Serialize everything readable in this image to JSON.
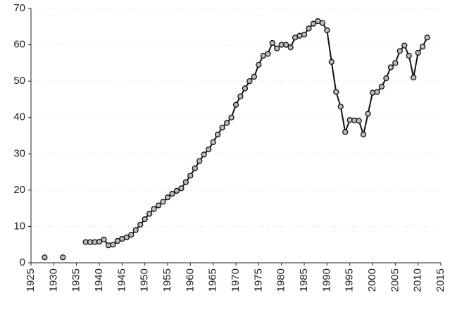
{
  "chart_data": {
    "type": "line",
    "x": [
      1928,
      1929,
      1930,
      1931,
      1932,
      1933,
      1934,
      1935,
      1936,
      1937,
      1938,
      1939,
      1940,
      1941,
      1942,
      1943,
      1944,
      1945,
      1946,
      1947,
      1948,
      1949,
      1950,
      1951,
      1952,
      1953,
      1954,
      1955,
      1956,
      1957,
      1958,
      1959,
      1960,
      1961,
      1962,
      1963,
      1964,
      1965,
      1966,
      1967,
      1968,
      1969,
      1970,
      1971,
      1972,
      1973,
      1974,
      1975,
      1976,
      1977,
      1978,
      1979,
      1980,
      1981,
      1982,
      1983,
      1984,
      1985,
      1986,
      1987,
      1988,
      1989,
      1990,
      1991,
      1992,
      1993,
      1994,
      1995,
      1996,
      1997,
      1998,
      1999,
      2000,
      2001,
      2002,
      2003,
      2004,
      2005,
      2006,
      2007,
      2008,
      2009,
      2010,
      2011,
      2012
    ],
    "series": [
      {
        "color": "#111111",
        "values": [
          1.5,
          null,
          null,
          null,
          1.5,
          null,
          null,
          null,
          null,
          5.7,
          5.7,
          5.7,
          5.8,
          6.4,
          4.8,
          5.0,
          6.0,
          6.6,
          7.0,
          7.7,
          9.0,
          10.5,
          12.0,
          13.5,
          14.8,
          15.8,
          16.8,
          18.0,
          19.0,
          19.8,
          20.5,
          22.2,
          24.0,
          26.0,
          28.0,
          29.8,
          31.2,
          33.2,
          35.3,
          37.2,
          38.5,
          40.0,
          43.5,
          45.8,
          48.0,
          50.0,
          51.2,
          54.5,
          57.0,
          57.5,
          60.5,
          59.0,
          60.0,
          60.0,
          59.3,
          62.0,
          62.5,
          62.8,
          64.5,
          65.8,
          66.5,
          66.0,
          64.0,
          55.3,
          47.0,
          43.0,
          36.0,
          39.3,
          39.2,
          39.1,
          35.3,
          41.0,
          46.8,
          47.0,
          48.5,
          50.8,
          53.8,
          55.0,
          58.3,
          59.8,
          57.0,
          51.0,
          57.8,
          59.5,
          62.0
        ]
      }
    ],
    "xlim": [
      1925,
      2015
    ],
    "xticks": [
      1925,
      1930,
      1935,
      1940,
      1945,
      1950,
      1955,
      1960,
      1965,
      1970,
      1975,
      1980,
      1985,
      1990,
      1995,
      2000,
      2005,
      2010,
      2015
    ],
    "ylim": [
      0,
      70
    ],
    "yticks": [
      0,
      10,
      20,
      30,
      40,
      50,
      60,
      70
    ],
    "grid": true
  }
}
